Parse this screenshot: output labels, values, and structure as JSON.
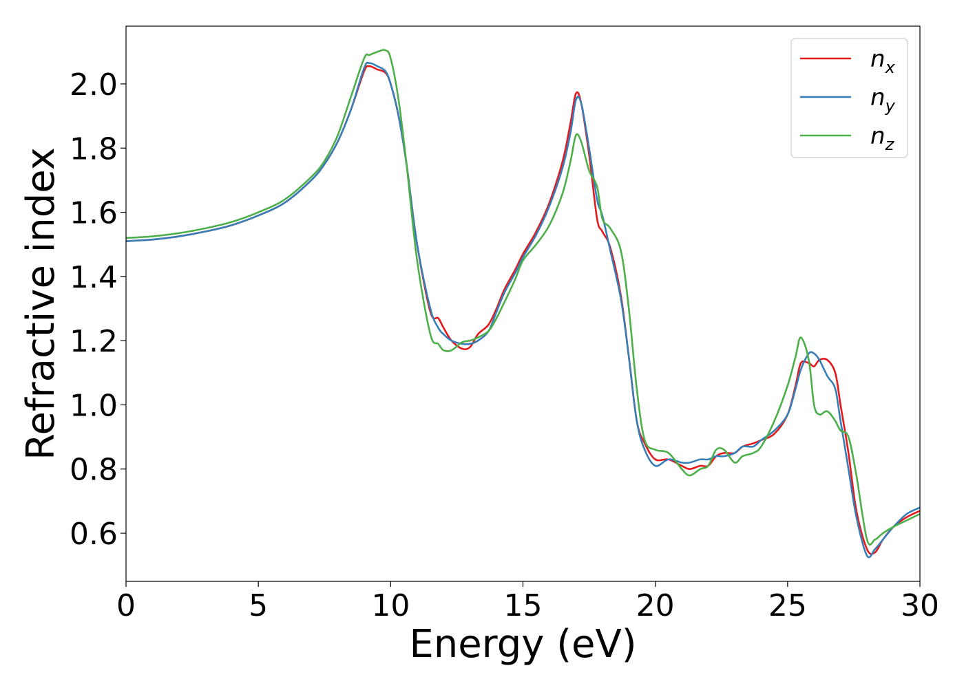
{
  "chart_data": {
    "type": "line",
    "xlabel": "Energy (eV)",
    "ylabel": "Refractive index",
    "xlim": [
      0,
      30
    ],
    "ylim": [
      0.45,
      2.18
    ],
    "xticks": [
      0,
      5,
      10,
      15,
      20,
      25,
      30
    ],
    "yticks": [
      0.6,
      0.8,
      1.0,
      1.2,
      1.4,
      1.6,
      1.8,
      2.0
    ],
    "xtick_labels": [
      "0",
      "5",
      "10",
      "15",
      "20",
      "25",
      "30"
    ],
    "ytick_labels": [
      "0.6",
      "0.8",
      "1.0",
      "1.2",
      "1.4",
      "1.6",
      "1.8",
      "2.0"
    ],
    "grid": false,
    "legend_position": "top-right",
    "series": [
      {
        "name": "n_x",
        "legend_main": "n",
        "legend_sub": "x",
        "color": "#e41a1c",
        "x": [
          0,
          1,
          2,
          3,
          4,
          5,
          6,
          7,
          7.5,
          8,
          8.5,
          9,
          9.2,
          9.5,
          9.8,
          10,
          10.3,
          10.6,
          11,
          11.5,
          11.8,
          12,
          12.3,
          12.7,
          13,
          13.3,
          13.7,
          14,
          14.3,
          14.7,
          15,
          15.5,
          16,
          16.5,
          16.8,
          17,
          17.2,
          17.5,
          17.8,
          18,
          18.3,
          18.7,
          19,
          19.3,
          19.6,
          20,
          20.5,
          21,
          21.3,
          21.7,
          22,
          22.3,
          22.6,
          23,
          23.3,
          23.7,
          24,
          24.5,
          25,
          25.3,
          25.5,
          25.8,
          26,
          26.2,
          26.5,
          26.8,
          27,
          27.3,
          27.6,
          28,
          28.3,
          28.6,
          29,
          29.5,
          30
        ],
        "y": [
          1.51,
          1.515,
          1.525,
          1.54,
          1.56,
          1.59,
          1.63,
          1.7,
          1.75,
          1.82,
          1.92,
          2.04,
          2.055,
          2.045,
          2.035,
          2.0,
          1.9,
          1.75,
          1.5,
          1.29,
          1.27,
          1.24,
          1.2,
          1.175,
          1.18,
          1.22,
          1.25,
          1.3,
          1.36,
          1.42,
          1.47,
          1.54,
          1.63,
          1.76,
          1.88,
          1.97,
          1.94,
          1.78,
          1.58,
          1.54,
          1.49,
          1.34,
          1.15,
          0.95,
          0.88,
          0.83,
          0.83,
          0.81,
          0.8,
          0.81,
          0.81,
          0.84,
          0.85,
          0.85,
          0.87,
          0.88,
          0.89,
          0.91,
          0.97,
          1.06,
          1.13,
          1.13,
          1.12,
          1.14,
          1.14,
          1.1,
          1.0,
          0.85,
          0.67,
          0.55,
          0.54,
          0.58,
          0.62,
          0.65,
          0.67
        ]
      },
      {
        "name": "n_y",
        "legend_main": "n",
        "legend_sub": "y",
        "color": "#377eb8",
        "x": [
          0,
          1,
          2,
          3,
          4,
          5,
          6,
          7,
          7.5,
          8,
          8.5,
          9,
          9.2,
          9.5,
          9.8,
          10,
          10.3,
          10.6,
          11,
          11.5,
          11.8,
          12,
          12.3,
          12.7,
          13,
          13.3,
          13.7,
          14,
          14.3,
          14.7,
          15,
          15.5,
          16,
          16.5,
          16.8,
          17,
          17.2,
          17.5,
          17.8,
          18,
          18.3,
          18.7,
          19,
          19.3,
          19.6,
          20,
          20.5,
          21,
          21.3,
          21.7,
          22,
          22.3,
          22.6,
          23,
          23.3,
          23.7,
          24,
          24.5,
          25,
          25.3,
          25.5,
          25.8,
          26,
          26.2,
          26.5,
          26.8,
          27,
          27.3,
          27.6,
          28,
          28.3,
          28.6,
          29,
          29.5,
          30
        ],
        "y": [
          1.51,
          1.515,
          1.525,
          1.54,
          1.56,
          1.59,
          1.63,
          1.7,
          1.75,
          1.82,
          1.92,
          2.05,
          2.065,
          2.055,
          2.04,
          2.0,
          1.9,
          1.75,
          1.5,
          1.3,
          1.24,
          1.22,
          1.2,
          1.19,
          1.19,
          1.2,
          1.23,
          1.29,
          1.35,
          1.41,
          1.46,
          1.53,
          1.62,
          1.74,
          1.85,
          1.95,
          1.94,
          1.8,
          1.64,
          1.59,
          1.48,
          1.33,
          1.15,
          0.95,
          0.86,
          0.81,
          0.83,
          0.82,
          0.82,
          0.83,
          0.83,
          0.84,
          0.84,
          0.85,
          0.87,
          0.87,
          0.89,
          0.92,
          0.97,
          1.05,
          1.11,
          1.16,
          1.16,
          1.14,
          1.09,
          1.05,
          0.95,
          0.8,
          0.65,
          0.53,
          0.55,
          0.58,
          0.62,
          0.66,
          0.68
        ]
      },
      {
        "name": "n_z",
        "legend_main": "n",
        "legend_sub": "z",
        "color": "#4daf4a",
        "x": [
          0,
          1,
          2,
          3,
          4,
          5,
          6,
          7,
          7.5,
          8,
          8.5,
          9,
          9.2,
          9.5,
          9.8,
          10,
          10.3,
          10.6,
          11,
          11.5,
          11.8,
          12,
          12.3,
          12.7,
          13,
          13.3,
          13.7,
          14,
          14.3,
          14.7,
          15,
          15.5,
          16,
          16.5,
          16.8,
          17,
          17.2,
          17.5,
          17.8,
          18,
          18.3,
          18.7,
          19,
          19.3,
          19.6,
          20,
          20.5,
          21,
          21.3,
          21.7,
          22,
          22.3,
          22.6,
          23,
          23.3,
          23.7,
          24,
          24.5,
          25,
          25.3,
          25.5,
          25.8,
          26,
          26.2,
          26.5,
          26.8,
          27,
          27.3,
          27.6,
          28,
          28.3,
          28.6,
          29,
          29.5,
          30
        ],
        "y": [
          1.52,
          1.525,
          1.535,
          1.55,
          1.57,
          1.6,
          1.64,
          1.71,
          1.76,
          1.84,
          1.96,
          2.08,
          2.09,
          2.1,
          2.105,
          2.08,
          1.95,
          1.75,
          1.45,
          1.22,
          1.19,
          1.17,
          1.17,
          1.195,
          1.2,
          1.21,
          1.23,
          1.27,
          1.32,
          1.39,
          1.45,
          1.5,
          1.56,
          1.66,
          1.76,
          1.84,
          1.82,
          1.73,
          1.68,
          1.58,
          1.55,
          1.48,
          1.3,
          1.05,
          0.89,
          0.86,
          0.85,
          0.8,
          0.78,
          0.8,
          0.81,
          0.86,
          0.86,
          0.82,
          0.84,
          0.85,
          0.87,
          0.95,
          1.06,
          1.15,
          1.21,
          1.14,
          1.0,
          0.97,
          0.98,
          0.95,
          0.92,
          0.9,
          0.78,
          0.58,
          0.58,
          0.6,
          0.62,
          0.64,
          0.66
        ]
      }
    ]
  }
}
